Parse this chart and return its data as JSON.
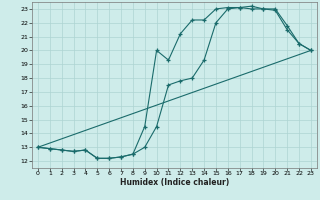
{
  "xlabel": "Humidex (Indice chaleur)",
  "bg_color": "#ceecea",
  "grid_color": "#aed4d2",
  "line_color": "#1a6b6b",
  "xlim": [
    -0.5,
    23.5
  ],
  "ylim": [
    11.5,
    23.5
  ],
  "xticks": [
    0,
    1,
    2,
    3,
    4,
    5,
    6,
    7,
    8,
    9,
    10,
    11,
    12,
    13,
    14,
    15,
    16,
    17,
    18,
    19,
    20,
    21,
    22,
    23
  ],
  "yticks": [
    12,
    13,
    14,
    15,
    16,
    17,
    18,
    19,
    20,
    21,
    22,
    23
  ],
  "line1_x": [
    0,
    1,
    2,
    3,
    4,
    5,
    6,
    7,
    8,
    9,
    10,
    11,
    12,
    13,
    14,
    15,
    16,
    17,
    18,
    19,
    20,
    21,
    22,
    23
  ],
  "line1_y": [
    13.0,
    12.9,
    12.8,
    12.7,
    12.8,
    12.2,
    12.2,
    12.3,
    12.5,
    14.5,
    20.0,
    19.3,
    21.2,
    22.2,
    22.2,
    23.0,
    23.1,
    23.1,
    23.0,
    23.0,
    23.0,
    21.8,
    20.5,
    20.0
  ],
  "line2_x": [
    0,
    1,
    2,
    3,
    4,
    5,
    6,
    7,
    8,
    9,
    10,
    11,
    12,
    13,
    14,
    15,
    16,
    17,
    18,
    19,
    20,
    21,
    22,
    23
  ],
  "line2_y": [
    13.0,
    12.9,
    12.8,
    12.7,
    12.8,
    12.2,
    12.2,
    12.3,
    12.5,
    13.0,
    14.5,
    17.5,
    17.8,
    18.0,
    19.3,
    22.0,
    23.0,
    23.1,
    23.2,
    23.0,
    22.9,
    21.5,
    20.5,
    20.0
  ],
  "line3_x": [
    0,
    23
  ],
  "line3_y": [
    13.0,
    20.0
  ]
}
